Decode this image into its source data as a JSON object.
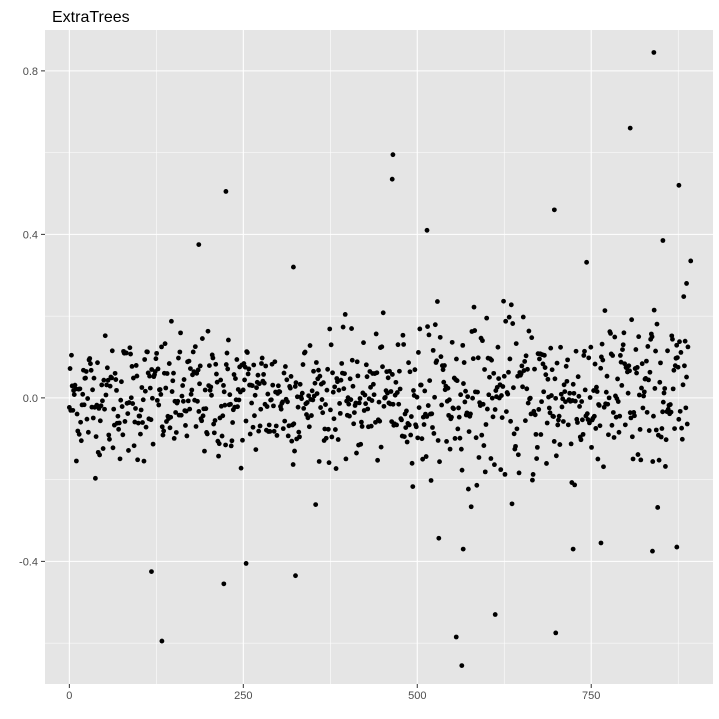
{
  "chart_data": {
    "type": "scatter",
    "title": "ExtraTrees",
    "xlabel": "",
    "ylabel": "",
    "xlim": [
      -35,
      925
    ],
    "ylim": [
      -0.7,
      0.9
    ],
    "x_ticks": [
      0,
      250,
      500,
      750
    ],
    "x_tick_labels": [
      "0",
      "250",
      "500",
      "750"
    ],
    "x_minor_ticks": [
      125,
      375,
      625,
      875
    ],
    "y_ticks": [
      -0.4,
      0.0,
      0.4,
      0.8
    ],
    "y_tick_labels": [
      "-0.4",
      "0.0",
      "0.4",
      "0.8"
    ],
    "y_minor_ticks": [
      -0.6,
      -0.2,
      0.2,
      0.6
    ],
    "grid": true,
    "background": "#e5e5e5",
    "grid_color": "#ffffff",
    "point_color": "#000000",
    "notable_points": [
      {
        "x": 225,
        "y": 0.505
      },
      {
        "x": 133,
        "y": -0.595
      },
      {
        "x": 118,
        "y": -0.425
      },
      {
        "x": 222,
        "y": -0.455
      },
      {
        "x": 254,
        "y": -0.405
      },
      {
        "x": 325,
        "y": -0.435
      },
      {
        "x": 186,
        "y": 0.375
      },
      {
        "x": 322,
        "y": 0.32
      },
      {
        "x": 465,
        "y": 0.595
      },
      {
        "x": 464,
        "y": 0.535
      },
      {
        "x": 514,
        "y": 0.41
      },
      {
        "x": 556,
        "y": -0.585
      },
      {
        "x": 564,
        "y": -0.655
      },
      {
        "x": 612,
        "y": -0.53
      },
      {
        "x": 697,
        "y": 0.46
      },
      {
        "x": 699,
        "y": -0.575
      },
      {
        "x": 806,
        "y": 0.66
      },
      {
        "x": 840,
        "y": 0.845
      },
      {
        "x": 876,
        "y": 0.52
      },
      {
        "x": 893,
        "y": 0.335
      },
      {
        "x": 887,
        "y": 0.28
      },
      {
        "x": 853,
        "y": 0.385
      },
      {
        "x": 873,
        "y": -0.365
      },
      {
        "x": 838,
        "y": -0.375
      },
      {
        "x": 724,
        "y": -0.37
      },
      {
        "x": 764,
        "y": -0.355
      },
      {
        "x": 566,
        "y": -0.37
      }
    ],
    "n_background_points": 880,
    "background_points_sd": 0.075
  }
}
